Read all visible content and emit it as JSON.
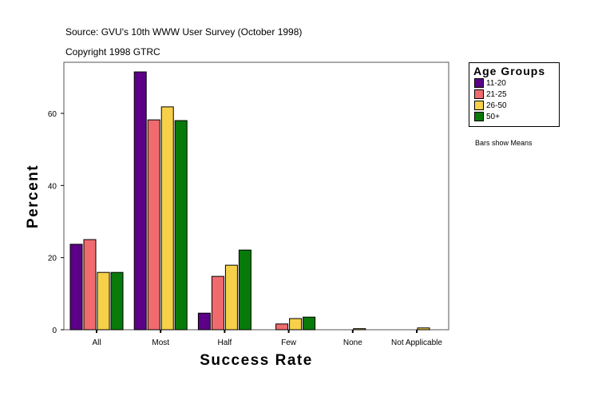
{
  "header": {
    "source": "Source: GVU's 10th WWW User Survey (October 1998)",
    "copyright": "Copyright 1998 GTRC"
  },
  "note": "Bars show Means",
  "chart_data": {
    "type": "bar",
    "xlabel": "Success Rate",
    "ylabel": "Percent",
    "categories": [
      "All",
      "Most",
      "Half",
      "Few",
      "None",
      "Not Applicable"
    ],
    "ylim": [
      0,
      74
    ],
    "yticks": [
      0,
      20,
      40,
      60
    ],
    "legend_title": "Age Groups",
    "legend_placement": "right",
    "series": [
      {
        "name": "11-20",
        "color": "#5c0087",
        "values": [
          23.7,
          71.5,
          4.6,
          0,
          0,
          0
        ]
      },
      {
        "name": "21-25",
        "color": "#ef6b6e",
        "values": [
          25.0,
          58.2,
          14.8,
          1.6,
          0,
          0
        ]
      },
      {
        "name": "26-50",
        "color": "#f7d04a",
        "values": [
          15.9,
          61.8,
          17.9,
          3.1,
          0.3,
          0.5
        ]
      },
      {
        "name": "50+",
        "color": "#087a0a",
        "values": [
          15.9,
          58.0,
          22.1,
          3.5,
          0,
          0
        ]
      }
    ]
  }
}
